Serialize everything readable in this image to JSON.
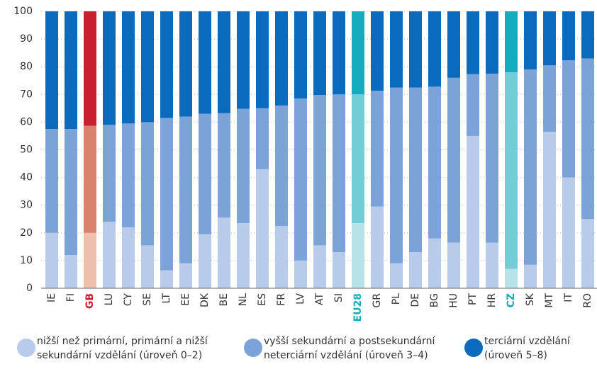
{
  "chart_data": {
    "type": "stacked_bar",
    "categories": [
      "IE",
      "FI",
      "GB",
      "LU",
      "CY",
      "SE",
      "LT",
      "EE",
      "DK",
      "BE",
      "NL",
      "ES",
      "FR",
      "LV",
      "AT",
      "SI",
      "EU28",
      "GR",
      "PL",
      "DE",
      "BG",
      "HU",
      "PT",
      "HR",
      "CZ",
      "SK",
      "MT",
      "IT",
      "RO"
    ],
    "series": [
      {
        "name": "nižší než primární, primární a nižší sekundární vzdělání (úroveň 0–2)",
        "color": "#b9cbea",
        "values": [
          20,
          12,
          20,
          24,
          22,
          15.5,
          6.5,
          9,
          19.5,
          25.5,
          23.5,
          43,
          22.5,
          10,
          15.5,
          13,
          23.5,
          29.5,
          9,
          13,
          18,
          16.5,
          55,
          16.5,
          7,
          8.5,
          56.5,
          40,
          25
        ]
      },
      {
        "name": "vyšší sekundární a postsekundární neterciární vzdělání (úroveň 3–4)",
        "color": "#7ba3d8",
        "values": [
          37.5,
          45.5,
          38.7,
          35,
          37.5,
          44.5,
          55,
          53,
          43.5,
          37.7,
          41.3,
          22,
          43.5,
          58.5,
          54.3,
          57,
          46.5,
          41.8,
          63.5,
          59.5,
          54.8,
          59.5,
          22.3,
          61,
          71,
          70.5,
          24,
          42.3,
          58
        ]
      },
      {
        "name": "terciární vzdělání (úroveň 5–8)",
        "color": "#0a6bbd",
        "values": [
          42.5,
          42.5,
          41.3,
          41,
          40.5,
          40,
          38.5,
          38,
          37,
          36.8,
          35.2,
          35,
          34,
          31.5,
          30.2,
          30,
          30,
          28.7,
          27.5,
          27.5,
          27.2,
          24,
          22.7,
          22.5,
          22,
          21,
          19.5,
          17.7,
          17
        ]
      }
    ],
    "highlights": {
      "GB": {
        "colors": [
          "#eec0ac",
          "#d9826c",
          "#c8202f"
        ],
        "label_color": "#c8202f"
      },
      "EU28": {
        "colors": [
          "#b7e3e8",
          "#72cdd7",
          "#13adbf"
        ],
        "label_color": "#13adbf"
      },
      "CZ": {
        "colors": [
          "#b7e3e8",
          "#72cdd7",
          "#13adbf"
        ],
        "label_color": "#13adbf"
      }
    },
    "ylim": [
      0,
      100
    ],
    "yticks": [
      0,
      10,
      20,
      30,
      40,
      50,
      60,
      70,
      80,
      90,
      100
    ],
    "grid": true
  }
}
